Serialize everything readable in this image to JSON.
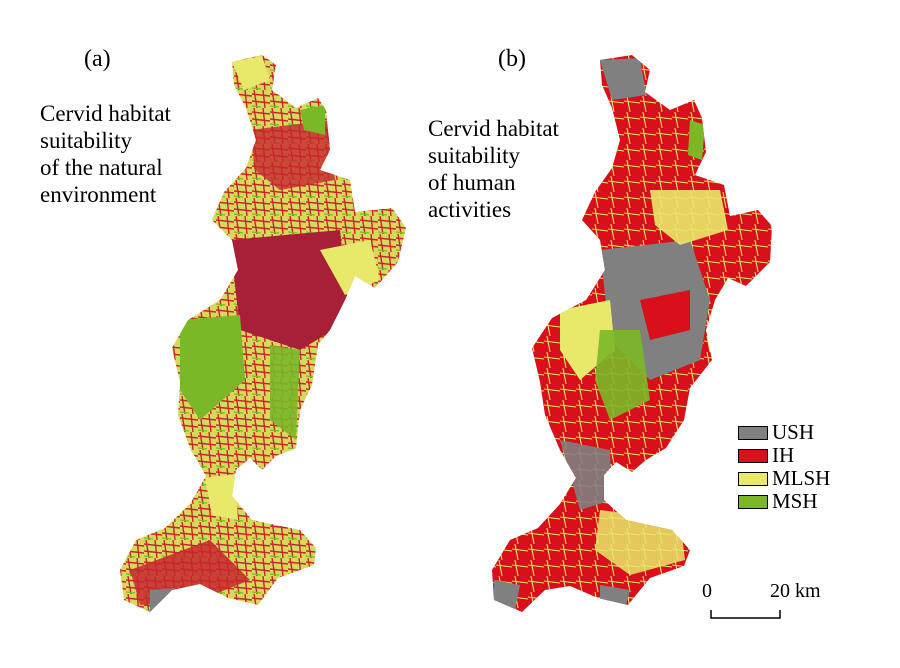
{
  "panels": [
    {
      "label": "(a)",
      "title_lines": [
        "Cervid habitat",
        "suitability",
        "of the natural",
        "environment"
      ]
    },
    {
      "label": "(b)",
      "title_lines": [
        "Cervid habitat",
        "suitability",
        "of human",
        "activities"
      ]
    }
  ],
  "legend": [
    {
      "label": "USH",
      "color": "#808080"
    },
    {
      "label": "IH",
      "color": "#d9101c"
    },
    {
      "label": "MLSH",
      "color": "#e8e86a"
    },
    {
      "label": "MSH",
      "color": "#7ab828"
    }
  ],
  "scale_bar": {
    "start": "0",
    "end": "20 km"
  },
  "colors": {
    "ush": "#808080",
    "ih": "#d9101c",
    "mlsh": "#e8e86a",
    "msh": "#7ab828",
    "dark_red": "#a82038"
  }
}
